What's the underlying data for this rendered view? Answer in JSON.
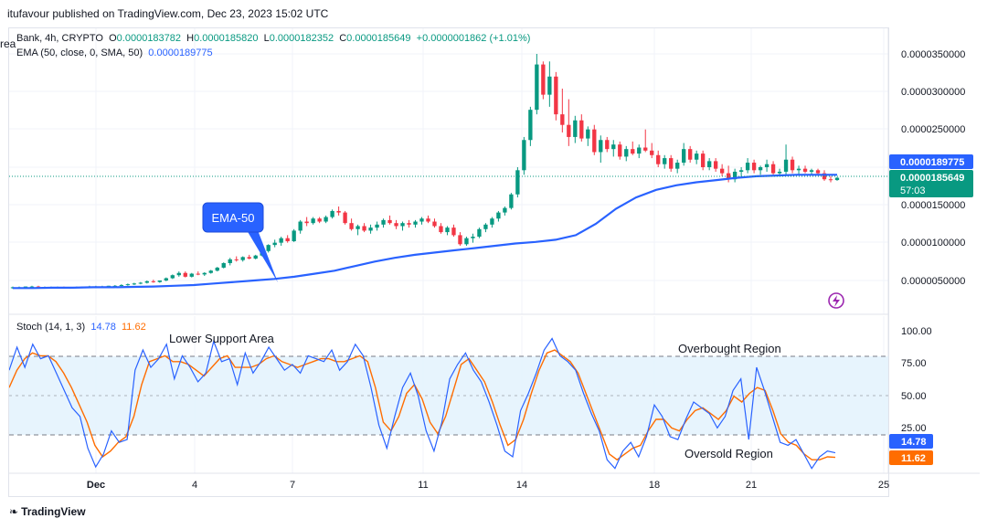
{
  "header": {
    "publisher": "itufavour published on TradingView.com, Dec 23, 2023 15:02 UTC"
  },
  "legend": {
    "symbol_line": "Bank, 4h, CRYPTO",
    "ohlc": {
      "o_label": "O",
      "o": "0.0000183782",
      "h_label": "H",
      "h": "0.0000185820",
      "l_label": "L",
      "l": "0.0000182352",
      "c_label": "C",
      "c": "0.0000185649",
      "change": "+0.0000001862 (+1.01%)"
    },
    "ema_label": "EMA (50, close, 0, SMA, 50)",
    "ema_value": "0.0000189775",
    "stoch_label": "Stoch (14, 1, 3)",
    "stoch_k": "14.78",
    "stoch_d": "11.62"
  },
  "price_axis": {
    "ticks": [
      "0.0000350000",
      "0.0000300000",
      "0.0000250000",
      "0.0000150000",
      "0.0000100000",
      "0.0000050000"
    ],
    "ema_badge": "0.0000189775",
    "price_badge": "0.0000185649",
    "countdown": "57:03"
  },
  "stoch_axis": {
    "ticks": [
      "100.00",
      "75.00",
      "50.00",
      "25.00"
    ],
    "k_badge": "14.78",
    "d_badge": "11.62"
  },
  "time_axis": {
    "ticks": [
      "Dec",
      "4",
      "7",
      "11",
      "14",
      "18",
      "21",
      "25"
    ]
  },
  "annotations": {
    "ema_callout": "EMA-50",
    "lower_support": "Lower Support Area",
    "overbought": "Overbought Region",
    "oversold": "Oversold Region",
    "partial_label": "rea"
  },
  "footer": {
    "brand": "TradingView"
  },
  "colors": {
    "up": "#089981",
    "down": "#f23645",
    "ema": "#2962ff",
    "stoch_k": "#2962ff",
    "stoch_d": "#ff6d00",
    "band": "#e3f2fd"
  },
  "chart_data": [
    {
      "type": "candlestick",
      "title": "Bank, 4h, CRYPTO",
      "ylim": [
        2.5e-06,
        3.65e-05
      ],
      "candles": [
        [
          4e-06,
          4.2e-06,
          3.9e-06,
          4.1e-06
        ],
        [
          4.1e-06,
          4.2e-06,
          4e-06,
          4.1e-06
        ],
        [
          4.1e-06,
          4.2e-06,
          4e-06,
          4.2e-06
        ],
        [
          4.2e-06,
          4.3e-06,
          4.1e-06,
          4.2e-06
        ],
        [
          4.2e-06,
          4.3e-06,
          4.1e-06,
          4.1e-06
        ],
        [
          4.1e-06,
          4.2e-06,
          4e-06,
          4.1e-06
        ],
        [
          4.1e-06,
          4.2e-06,
          4e-06,
          4.1e-06
        ],
        [
          4.1e-06,
          4.2e-06,
          4e-06,
          4.1e-06
        ],
        [
          4.1e-06,
          4.2e-06,
          4e-06,
          4e-06
        ],
        [
          4e-06,
          4.1e-06,
          3.9e-06,
          4.1e-06
        ],
        [
          4.1e-06,
          4.2e-06,
          4e-06,
          4.1e-06
        ],
        [
          4.1e-06,
          4.2e-06,
          4e-06,
          4.2e-06
        ],
        [
          4.2e-06,
          4.3e-06,
          4.1e-06,
          4.2e-06
        ],
        [
          4.2e-06,
          4.3e-06,
          4.1e-06,
          4.2e-06
        ],
        [
          4.2e-06,
          4.3e-06,
          4.1e-06,
          4.2e-06
        ],
        [
          4.2e-06,
          4.3e-06,
          4.1e-06,
          4.3e-06
        ],
        [
          4.3e-06,
          4.4e-06,
          4.2e-06,
          4.3e-06
        ],
        [
          4.3e-06,
          4.5e-06,
          4.2e-06,
          4.4e-06
        ],
        [
          4.4e-06,
          4.6e-06,
          4.3e-06,
          4.5e-06
        ],
        [
          4.5e-06,
          4.7e-06,
          4.4e-06,
          4.6e-06
        ],
        [
          4.6e-06,
          4.8e-06,
          4.5e-06,
          4.7e-06
        ],
        [
          4.7e-06,
          5e-06,
          4.6e-06,
          4.9e-06
        ],
        [
          4.9e-06,
          5.1e-06,
          4.7e-06,
          4.8e-06
        ],
        [
          4.8e-06,
          5e-06,
          4.7e-06,
          5e-06
        ],
        [
          5e-06,
          5.4e-06,
          4.9e-06,
          5.3e-06
        ],
        [
          5.3e-06,
          5.8e-06,
          5.2e-06,
          5.7e-06
        ],
        [
          5.7e-06,
          6.2e-06,
          5.5e-06,
          6e-06
        ],
        [
          6e-06,
          6.2e-06,
          5.4e-06,
          5.5e-06
        ],
        [
          5.5e-06,
          6e-06,
          5.4e-06,
          5.9e-06
        ],
        [
          5.9e-06,
          6.2e-06,
          5.7e-06,
          5.8e-06
        ],
        [
          5.8e-06,
          6.1e-06,
          5.6e-06,
          6e-06
        ],
        [
          6e-06,
          6.4e-06,
          5.9e-06,
          6.3e-06
        ],
        [
          6.3e-06,
          6.8e-06,
          6.2e-06,
          6.7e-06
        ],
        [
          6.7e-06,
          7.4e-06,
          6.6e-06,
          7.3e-06
        ],
        [
          7.3e-06,
          8e-06,
          7e-06,
          7.8e-06
        ],
        [
          7.8e-06,
          8.2e-06,
          7.5e-06,
          7.7e-06
        ],
        [
          7.7e-06,
          8.2e-06,
          7.5e-06,
          8.1e-06
        ],
        [
          8.1e-06,
          8.4e-06,
          7.8e-06,
          7.9e-06
        ],
        [
          7.9e-06,
          8.4e-06,
          7.8e-06,
          8.3e-06
        ],
        [
          8.3e-06,
          9e-06,
          8.2e-06,
          8.9e-06
        ],
        [
          8.9e-06,
          9.8e-06,
          8.7e-06,
          9.7e-06
        ],
        [
          9.7e-06,
          1.04e-05,
          9.4e-06,
          1e-05
        ],
        [
          1e-05,
          1.08e-05,
          9.6e-06,
          1.06e-05
        ],
        [
          1.06e-05,
          1.1e-05,
          1e-05,
          1.02e-05
        ],
        [
          1.02e-05,
          1.18e-05,
          1.01e-05,
          1.16e-05
        ],
        [
          1.16e-05,
          1.3e-05,
          1.12e-05,
          1.28e-05
        ],
        [
          1.28e-05,
          1.34e-05,
          1.22e-05,
          1.26e-05
        ],
        [
          1.26e-05,
          1.34e-05,
          1.24e-05,
          1.32e-05
        ],
        [
          1.32e-05,
          1.34e-05,
          1.26e-05,
          1.28e-05
        ],
        [
          1.28e-05,
          1.36e-05,
          1.26e-05,
          1.34e-05
        ],
        [
          1.34e-05,
          1.44e-05,
          1.32e-05,
          1.42e-05
        ],
        [
          1.42e-05,
          1.48e-05,
          1.36e-05,
          1.4e-05
        ],
        [
          1.4e-05,
          1.42e-05,
          1.24e-05,
          1.26e-05
        ],
        [
          1.26e-05,
          1.32e-05,
          1.16e-05,
          1.18e-05
        ],
        [
          1.18e-05,
          1.24e-05,
          1.1e-05,
          1.22e-05
        ],
        [
          1.22e-05,
          1.26e-05,
          1.14e-05,
          1.16e-05
        ],
        [
          1.16e-05,
          1.24e-05,
          1.12e-05,
          1.2e-05
        ],
        [
          1.2e-05,
          1.28e-05,
          1.16e-05,
          1.24e-05
        ],
        [
          1.24e-05,
          1.32e-05,
          1.2e-05,
          1.3e-05
        ],
        [
          1.3e-05,
          1.36e-05,
          1.24e-05,
          1.26e-05
        ],
        [
          1.26e-05,
          1.3e-05,
          1.18e-05,
          1.22e-05
        ],
        [
          1.22e-05,
          1.28e-05,
          1.16e-05,
          1.26e-05
        ],
        [
          1.26e-05,
          1.3e-05,
          1.2e-05,
          1.24e-05
        ],
        [
          1.24e-05,
          1.3e-05,
          1.2e-05,
          1.28e-05
        ],
        [
          1.28e-05,
          1.34e-05,
          1.24e-05,
          1.32e-05
        ],
        [
          1.32e-05,
          1.36e-05,
          1.26e-05,
          1.28e-05
        ],
        [
          1.28e-05,
          1.32e-05,
          1.2e-05,
          1.22e-05
        ],
        [
          1.22e-05,
          1.26e-05,
          1.12e-05,
          1.14e-05
        ],
        [
          1.14e-05,
          1.22e-05,
          1.1e-05,
          1.2e-05
        ],
        [
          1.2e-05,
          1.24e-05,
          1.08e-05,
          1.1e-05
        ],
        [
          1.1e-05,
          1.14e-05,
          9.6e-06,
          9.8e-06
        ],
        [
          9.8e-06,
          1.08e-05,
          9.6e-06,
          1.06e-05
        ],
        [
          1.06e-05,
          1.12e-05,
          1e-05,
          1.08e-05
        ],
        [
          1.08e-05,
          1.2e-05,
          1.06e-05,
          1.18e-05
        ],
        [
          1.18e-05,
          1.26e-05,
          1.14e-05,
          1.24e-05
        ],
        [
          1.24e-05,
          1.34e-05,
          1.2e-05,
          1.32e-05
        ],
        [
          1.32e-05,
          1.42e-05,
          1.28e-05,
          1.4e-05
        ],
        [
          1.4e-05,
          1.48e-05,
          1.36e-05,
          1.46e-05
        ],
        [
          1.46e-05,
          1.66e-05,
          1.44e-05,
          1.64e-05
        ],
        [
          1.64e-05,
          2e-05,
          1.6e-05,
          1.96e-05
        ],
        [
          1.96e-05,
          2.4e-05,
          1.9e-05,
          2.36e-05
        ],
        [
          2.36e-05,
          2.8e-05,
          2.28e-05,
          2.76e-05
        ],
        [
          2.76e-05,
          3.5e-05,
          2.7e-05,
          3.36e-05
        ],
        [
          3.36e-05,
          3.4e-05,
          2.9e-05,
          2.96e-05
        ],
        [
          2.96e-05,
          3.4e-05,
          2.8e-05,
          3.2e-05
        ],
        [
          3.2e-05,
          3.26e-05,
          2.62e-05,
          2.7e-05
        ],
        [
          2.7e-05,
          3.04e-05,
          2.46e-05,
          2.56e-05
        ],
        [
          2.56e-05,
          2.9e-05,
          2.28e-05,
          2.4e-05
        ],
        [
          2.4e-05,
          2.68e-05,
          2.32e-05,
          2.62e-05
        ],
        [
          2.62e-05,
          2.7e-05,
          2.34e-05,
          2.38e-05
        ],
        [
          2.38e-05,
          2.54e-05,
          2.28e-05,
          2.5e-05
        ],
        [
          2.5e-05,
          2.56e-05,
          2.16e-05,
          2.2e-05
        ],
        [
          2.2e-05,
          2.42e-05,
          2.06e-05,
          2.36e-05
        ],
        [
          2.36e-05,
          2.4e-05,
          2.2e-05,
          2.24e-05
        ],
        [
          2.24e-05,
          2.36e-05,
          2.14e-05,
          2.3e-05
        ],
        [
          2.3e-05,
          2.34e-05,
          2.1e-05,
          2.14e-05
        ],
        [
          2.14e-05,
          2.28e-05,
          2.08e-05,
          2.24e-05
        ],
        [
          2.24e-05,
          2.34e-05,
          2.16e-05,
          2.18e-05
        ],
        [
          2.18e-05,
          2.3e-05,
          2.12e-05,
          2.26e-05
        ],
        [
          2.26e-05,
          2.5e-05,
          2.2e-05,
          2.22e-05
        ],
        [
          2.22e-05,
          2.32e-05,
          2.12e-05,
          2.16e-05
        ],
        [
          2.16e-05,
          2.22e-05,
          2e-05,
          2.04e-05
        ],
        [
          2.04e-05,
          2.16e-05,
          1.98e-05,
          2.12e-05
        ],
        [
          2.12e-05,
          2.16e-05,
          1.94e-05,
          1.98e-05
        ],
        [
          1.98e-05,
          2.1e-05,
          1.92e-05,
          2.06e-05
        ],
        [
          2.06e-05,
          2.32e-05,
          2.02e-05,
          2.24e-05
        ],
        [
          2.24e-05,
          2.28e-05,
          2.06e-05,
          2.1e-05
        ],
        [
          2.1e-05,
          2.22e-05,
          2.04e-05,
          2.18e-05
        ],
        [
          2.18e-05,
          2.22e-05,
          1.96e-05,
          2e-05
        ],
        [
          2e-05,
          2.12e-05,
          1.96e-05,
          2.08e-05
        ],
        [
          2.08e-05,
          2.12e-05,
          1.94e-05,
          1.98e-05
        ],
        [
          1.98e-05,
          2.04e-05,
          1.88e-05,
          1.92e-05
        ],
        [
          1.92e-05,
          2.02e-05,
          1.8e-05,
          1.84e-05
        ],
        [
          1.84e-05,
          1.98e-05,
          1.8e-05,
          1.94e-05
        ],
        [
          1.94e-05,
          2e-05,
          1.88e-05,
          1.96e-05
        ],
        [
          1.96e-05,
          2.12e-05,
          1.92e-05,
          2.06e-05
        ],
        [
          2.06e-05,
          2.1e-05,
          1.92e-05,
          1.96e-05
        ],
        [
          1.96e-05,
          2.02e-05,
          1.9e-05,
          2e-05
        ],
        [
          2e-05,
          2.1e-05,
          1.94e-05,
          2.04e-05
        ],
        [
          2.04e-05,
          2.08e-05,
          1.9e-05,
          1.92e-05
        ],
        [
          1.92e-05,
          1.98e-05,
          1.88e-05,
          1.94e-05
        ],
        [
          1.94e-05,
          2.3e-05,
          1.9e-05,
          2.1e-05
        ],
        [
          2.1e-05,
          2.14e-05,
          1.92e-05,
          1.96e-05
        ],
        [
          1.96e-05,
          2.02e-05,
          1.9e-05,
          1.98e-05
        ],
        [
          1.98e-05,
          2.02e-05,
          1.92e-05,
          1.94e-05
        ],
        [
          1.94e-05,
          1.98e-05,
          1.9e-05,
          1.96e-05
        ],
        [
          1.96e-05,
          1.98e-05,
          1.9e-05,
          1.92e-05
        ],
        [
          1.92e-05,
          1.96e-05,
          1.82e-05,
          1.84e-05
        ],
        [
          1.84e-05,
          1.88e-05,
          1.8e-05,
          1.83e-05
        ],
        [
          1.83e-05,
          1.87e-05,
          1.82e-05,
          1.86e-05
        ]
      ]
    },
    {
      "type": "line",
      "name": "EMA (50, close, 0, SMA, 50)",
      "values": [
        4.0,
        4.0,
        4.05,
        4.05,
        4.1,
        4.1,
        4.15,
        4.2,
        4.3,
        4.4,
        4.6,
        4.8,
        5.0,
        5.2,
        5.5,
        5.9,
        6.3,
        6.9,
        7.5,
        8.0,
        8.4,
        8.7,
        9.0,
        9.3,
        9.6,
        9.9,
        10.1,
        10.4,
        11.0,
        12.5,
        14.5,
        16.0,
        17.0,
        17.6,
        18.0,
        18.3,
        18.6,
        18.8,
        18.9,
        19.0,
        19.0,
        19.0
      ]
    },
    {
      "type": "line",
      "title": "Stoch (14, 1, 3)",
      "ylim": [
        0,
        100
      ],
      "reference_lines": [
        80,
        50,
        20
      ],
      "series": [
        {
          "name": "K",
          "values": [
            72,
            88,
            74,
            90,
            80,
            82,
            70,
            58,
            46,
            40,
            18,
            5,
            14,
            30,
            22,
            24,
            72,
            86,
            74,
            80,
            90,
            66,
            82,
            74,
            64,
            70,
            92,
            78,
            80,
            62,
            84,
            70,
            78,
            88,
            80,
            72,
            76,
            70,
            82,
            80,
            78,
            86,
            72,
            78,
            90,
            82,
            60,
            34,
            18,
            40,
            60,
            70,
            54,
            30,
            16,
            36,
            66,
            76,
            84,
            72,
            64,
            50,
            34,
            16,
            12,
            44,
            56,
            70,
            86,
            94,
            82,
            78,
            72,
            56,
            42,
            30,
            10,
            4,
            16,
            22,
            12,
            26,
            48,
            40,
            26,
            24,
            38,
            50,
            46,
            42,
            32,
            40,
            58,
            66,
            24,
            74,
            58,
            40,
            22,
            20,
            24,
            14,
            4,
            12,
            16,
            14.78
          ]
        },
        {
          "name": "D",
          "values": [
            60,
            72,
            80,
            84,
            82,
            82,
            78,
            70,
            60,
            48,
            36,
            20,
            12,
            16,
            22,
            26,
            40,
            62,
            78,
            80,
            82,
            78,
            78,
            76,
            72,
            68,
            74,
            80,
            82,
            74,
            74,
            74,
            76,
            80,
            82,
            78,
            76,
            74,
            76,
            78,
            80,
            80,
            78,
            78,
            80,
            82,
            78,
            60,
            36,
            30,
            40,
            56,
            62,
            52,
            36,
            28,
            40,
            58,
            76,
            80,
            72,
            64,
            50,
            34,
            20,
            24,
            38,
            56,
            72,
            84,
            86,
            82,
            78,
            70,
            56,
            42,
            28,
            14,
            10,
            14,
            18,
            20,
            30,
            38,
            38,
            32,
            30,
            38,
            44,
            46,
            42,
            38,
            44,
            54,
            50,
            56,
            60,
            58,
            44,
            28,
            22,
            20,
            14,
            10,
            10,
            12,
            11.62
          ]
        }
      ]
    }
  ]
}
